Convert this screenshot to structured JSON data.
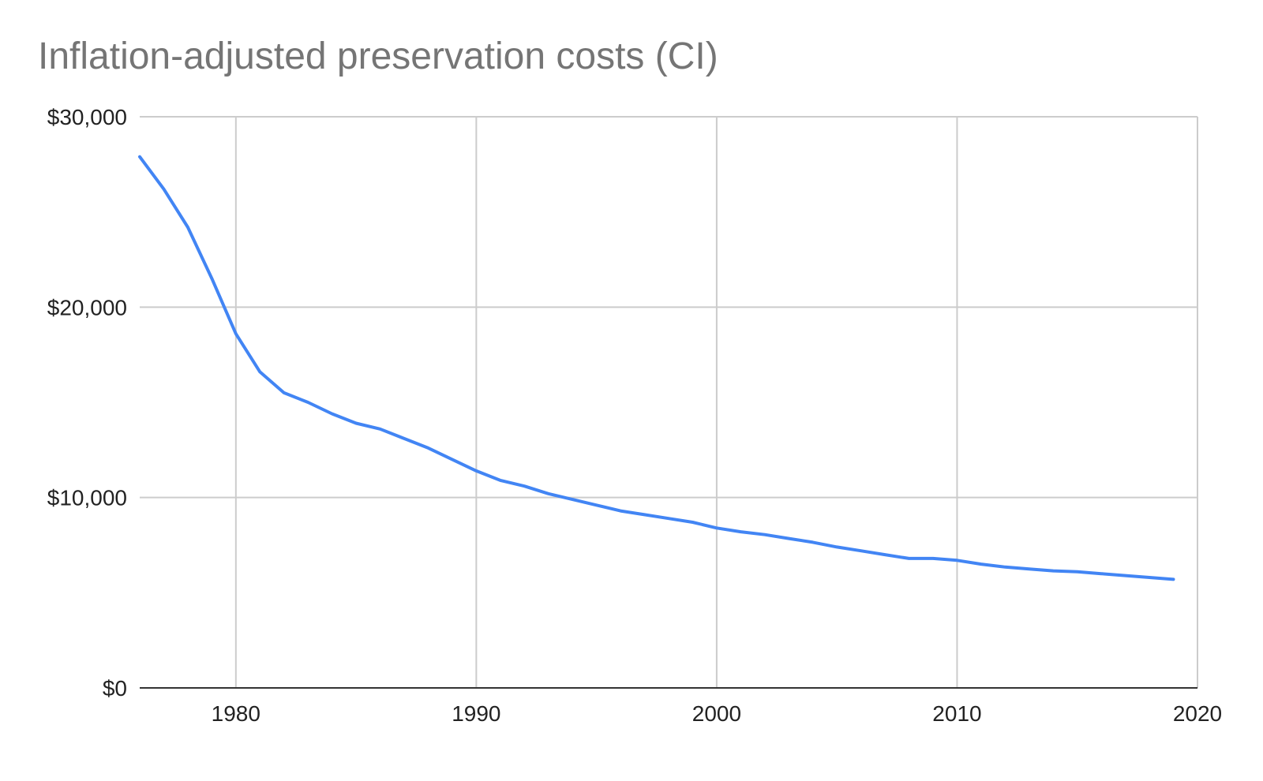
{
  "chart_data": {
    "type": "line",
    "title": "Inflation-adjusted preservation costs (CI)",
    "xlabel": "",
    "ylabel": "",
    "xlim": [
      1976,
      2020
    ],
    "ylim": [
      0,
      30000
    ],
    "x_ticks": [
      1980,
      1990,
      2000,
      2010,
      2020
    ],
    "y_ticks": [
      0,
      10000,
      20000,
      30000
    ],
    "y_tick_labels": [
      "$0",
      "$10,000",
      "$20,000",
      "$30,000"
    ],
    "grid": true,
    "legend": "none",
    "colors": {
      "line": "#4285f4",
      "grid": "#cccccc",
      "axis": "#333333",
      "title": "#757575"
    },
    "series": [
      {
        "x": [
          1976,
          1977,
          1978,
          1979,
          1980,
          1981,
          1982,
          1983,
          1984,
          1985,
          1986,
          1987,
          1988,
          1989,
          1990,
          1991,
          1992,
          1993,
          1994,
          1995,
          1996,
          1997,
          1998,
          1999,
          2000,
          2001,
          2002,
          2003,
          2004,
          2005,
          2006,
          2007,
          2008,
          2009,
          2010,
          2011,
          2012,
          2013,
          2014,
          2015,
          2016,
          2017,
          2018,
          2019
        ],
        "values": [
          27900,
          26200,
          24200,
          21500,
          18600,
          16600,
          15500,
          15000,
          14400,
          13900,
          13600,
          13100,
          12600,
          12000,
          11400,
          10900,
          10600,
          10200,
          9900,
          9600,
          9300,
          9100,
          8900,
          8700,
          8400,
          8200,
          8050,
          7850,
          7650,
          7400,
          7200,
          7000,
          6800,
          6800,
          6700,
          6500,
          6350,
          6250,
          6150,
          6100,
          6000,
          5900,
          5800,
          5700
        ]
      }
    ]
  }
}
